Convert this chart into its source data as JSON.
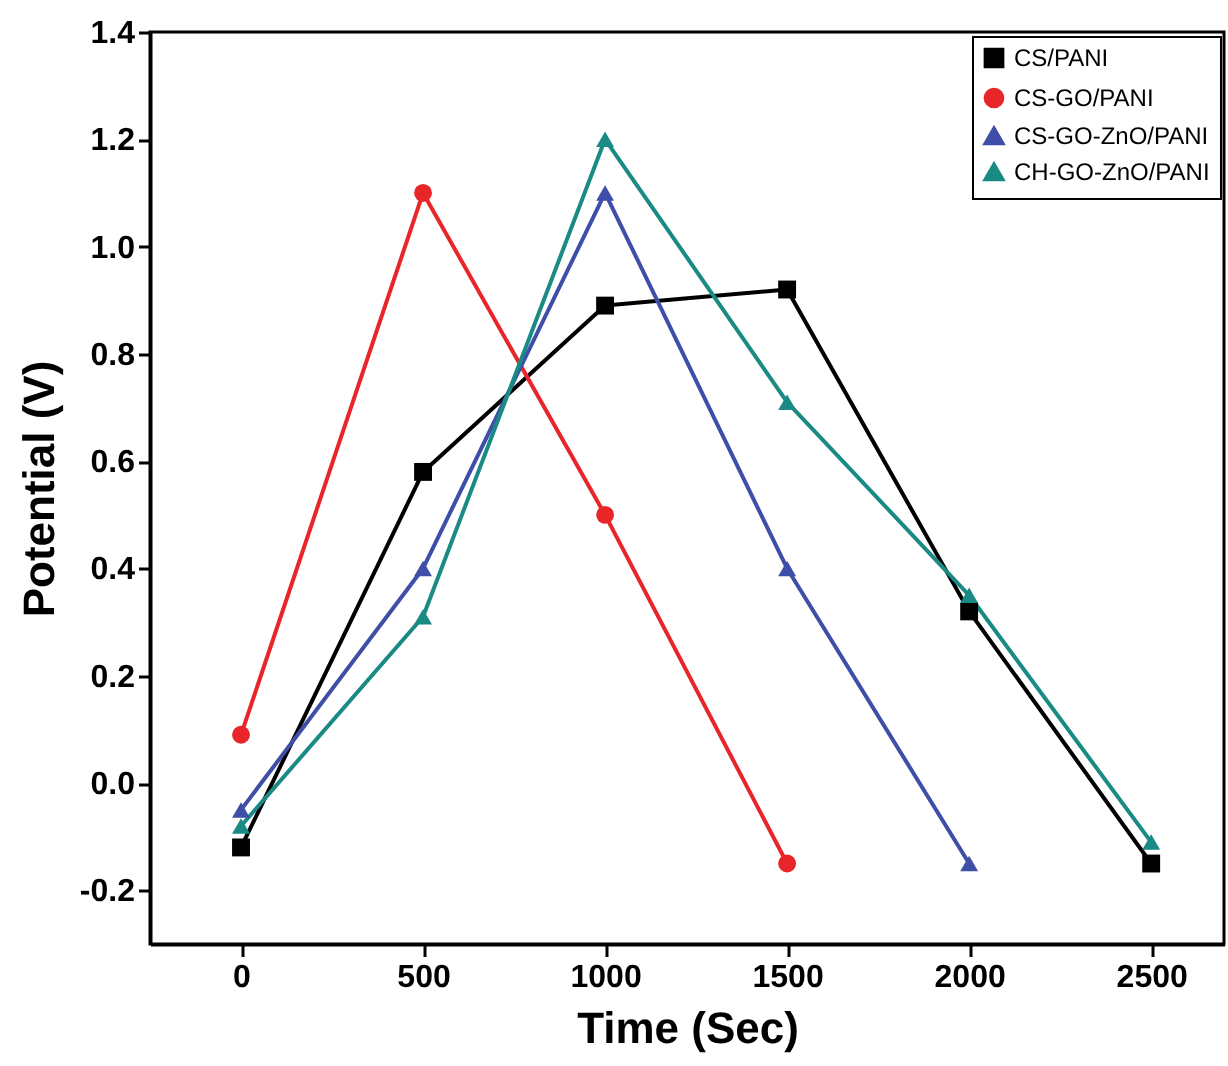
{
  "chart_data": {
    "type": "line",
    "xlabel": "Time (Sec)",
    "ylabel": "Potential (V)",
    "xlim": [
      -250,
      2700
    ],
    "xticks": [
      0,
      500,
      1000,
      1500,
      2000,
      2500
    ],
    "ylim": [
      -0.3,
      1.4
    ],
    "yticks": [
      {
        "value": -0.2,
        "label": "-0.2"
      },
      {
        "value": 0,
        "label": "0.0"
      },
      {
        "value": 0.2,
        "label": "0.2"
      },
      {
        "value": 0.4,
        "label": "0.4"
      },
      {
        "value": 0.6,
        "label": "0.6"
      },
      {
        "value": 0.8,
        "label": "0.8"
      },
      {
        "value": 1.0,
        "label": "1.0"
      },
      {
        "value": 1.2,
        "label": "1.2"
      },
      {
        "value": 1.4,
        "label": "1.4"
      }
    ],
    "grid": false,
    "legend": "top right",
    "line_style": "solid",
    "series": [
      {
        "name": "CS/PANI",
        "color": "#000000",
        "marker": "square",
        "x": [
          0,
          500,
          1000,
          1500,
          2000,
          2500
        ],
        "values": [
          -0.12,
          0.58,
          0.89,
          0.92,
          0.32,
          -0.15
        ]
      },
      {
        "name": "CS-GO/PANI",
        "color": "#e8262a",
        "marker": "circle",
        "x": [
          0,
          500,
          1000,
          1500
        ],
        "values": [
          0.09,
          1.1,
          0.5,
          -0.15
        ]
      },
      {
        "name": "CS-GO-ZnO/PANI",
        "color": "#3f4fa8",
        "marker": "triangle",
        "x": [
          0,
          500,
          1000,
          1500,
          2000
        ],
        "values": [
          -0.05,
          0.4,
          1.1,
          0.4,
          -0.15
        ]
      },
      {
        "name": "CH-GO-ZnO/PANI",
        "color": "#1a8a84",
        "marker": "triangle",
        "x": [
          0,
          500,
          1000,
          1500,
          2000,
          2500
        ],
        "values": [
          -0.08,
          0.31,
          1.2,
          0.71,
          0.35,
          -0.11
        ]
      }
    ]
  }
}
